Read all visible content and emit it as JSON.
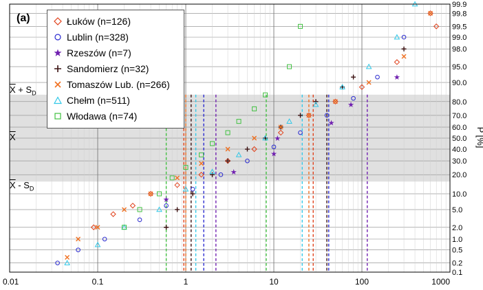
{
  "chart_data": {
    "type": "scatter",
    "panel_label": "(a)",
    "xscale": "log",
    "yscale": "probability",
    "ylabel": "P [%]",
    "xlim": [
      0.01,
      1000
    ],
    "ylim": [
      0.1,
      99.9
    ],
    "x_ticks": [
      "0.01",
      "0.1",
      "1",
      "10",
      "100",
      "1000"
    ],
    "y_ticks": [
      "0.1",
      "0.2",
      "0.5",
      "1.0",
      "2.0",
      "5.0",
      "10.0",
      "20.0",
      "30.0",
      "40.0",
      "50.0",
      "60.0",
      "70.0",
      "80.0",
      "90.0",
      "95.0",
      "98.0",
      "99.0",
      "99.5",
      "99.8",
      "99.9"
    ],
    "band": {
      "lower_p": 15.87,
      "upper_p": 84.13,
      "color": "#e0e0e0"
    },
    "band_labels": {
      "mean": "X",
      "upper_prefix": "X",
      "upper_suffix": " + S",
      "upper_sub": "D",
      "lower_prefix": "X",
      "lower_suffix": " - S",
      "lower_sub": "D"
    },
    "legend_position": "top-left",
    "series": [
      {
        "name": "Łuków (n=126)",
        "marker": "diamond",
        "color": "#e0401a",
        "x": [
          0.09,
          0.15,
          0.25,
          0.4,
          0.8,
          1.5,
          3,
          6,
          12,
          25,
          50,
          100,
          250,
          600,
          700
        ],
        "y": [
          2,
          4,
          6,
          10,
          14,
          20,
          30,
          40,
          55,
          70,
          80,
          88,
          96,
          99.8,
          99.5
        ],
        "guide_x": [
          0.95,
          28
        ]
      },
      {
        "name": "Lublin (n=328)",
        "marker": "circle",
        "color": "#2a2ad0",
        "x": [
          0.035,
          0.06,
          0.12,
          0.3,
          0.6,
          1.2,
          2.5,
          5,
          10,
          20,
          40,
          80,
          150,
          300
        ],
        "y": [
          0.2,
          0.5,
          1,
          3,
          6,
          12,
          20,
          30,
          42,
          55,
          70,
          82,
          92,
          99
        ],
        "guide_x": [
          1.6,
          42
        ]
      },
      {
        "name": "Rzeszów (n=7)",
        "marker": "star",
        "color": "#7020b0",
        "x": [
          0.6,
          3.5,
          10,
          11,
          45,
          75,
          250
        ],
        "y": [
          8,
          22,
          36,
          50,
          64,
          78,
          92
        ],
        "guide_x": [
          2.2,
          115
        ]
      },
      {
        "name": "Sandomierz (n=32)",
        "marker": "plus",
        "color": "#3a1010",
        "x": [
          0.6,
          0.8,
          1.2,
          2,
          3,
          5,
          8,
          12,
          20,
          30,
          60,
          80,
          300
        ],
        "y": [
          2,
          5,
          10,
          20,
          30,
          40,
          50,
          60,
          70,
          80,
          88,
          92,
          98
        ],
        "guide_x": [
          1.15,
          40
        ]
      },
      {
        "name": "Tomaszów Lub. (n=266)",
        "marker": "x",
        "color": "#f07020",
        "x": [
          0.045,
          0.06,
          0.1,
          0.2,
          0.4,
          0.8,
          1.5,
          3,
          6,
          12,
          25,
          50,
          120,
          300,
          600
        ],
        "y": [
          0.3,
          1,
          2,
          5,
          10,
          18,
          28,
          40,
          50,
          60,
          70,
          80,
          90,
          97,
          99.8
        ],
        "guide_x": [
          1.0,
          25
        ]
      },
      {
        "name": "Chełm (n=511)",
        "marker": "triangle",
        "color": "#30c8e8",
        "x": [
          0.045,
          0.1,
          0.2,
          0.5,
          1,
          2,
          4,
          8,
          15,
          30,
          60,
          120,
          250,
          400
        ],
        "y": [
          0.2,
          0.7,
          2,
          5,
          12,
          22,
          35,
          50,
          65,
          78,
          88,
          95,
          99,
          99.9
        ],
        "guide_x": [
          1.3,
          21
        ]
      },
      {
        "name": "Włodawa (n=74)",
        "marker": "square",
        "color": "#40c040",
        "x": [
          0.2,
          0.3,
          0.5,
          0.7,
          1,
          1.5,
          2,
          3,
          4,
          6,
          8,
          15,
          20
        ],
        "y": [
          2,
          5,
          10,
          18,
          25,
          35,
          45,
          55,
          65,
          75,
          84,
          95,
          99.5
        ],
        "guide_x": [
          0.6,
          8.2
        ]
      }
    ]
  }
}
